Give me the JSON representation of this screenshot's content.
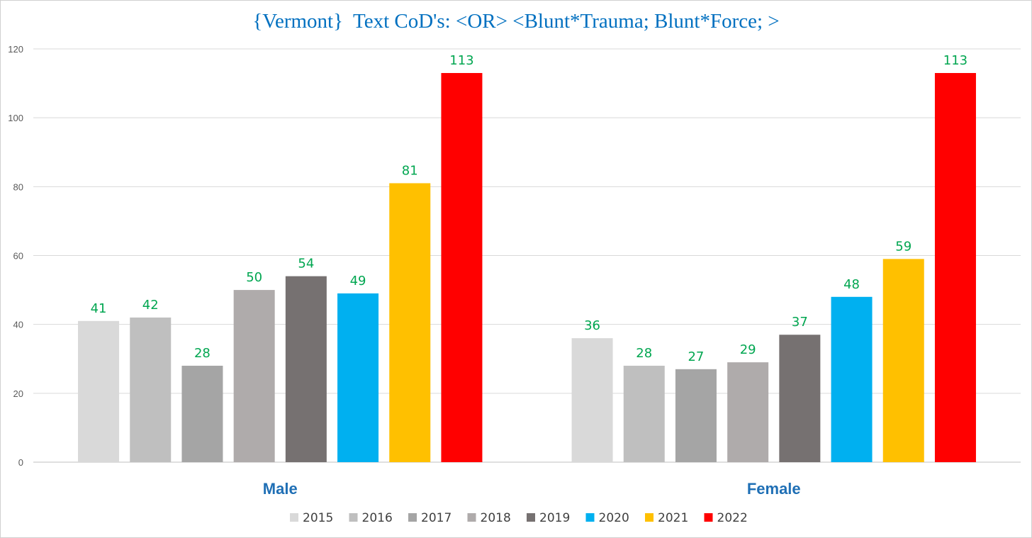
{
  "chart_data": {
    "type": "bar",
    "title": "{Vermont}  Text CoD's: <OR> <Blunt*Trauma; Blunt*Force; >",
    "xlabel": "",
    "ylabel": "",
    "ylim": [
      0,
      120
    ],
    "yticks": [
      0,
      20,
      40,
      60,
      80,
      100,
      120
    ],
    "grid": true,
    "legend_position": "bottom",
    "categories": [
      "Male",
      "Female"
    ],
    "series": [
      {
        "name": "2015",
        "color": "#d9d9d9",
        "values": [
          41,
          36
        ]
      },
      {
        "name": "2016",
        "color": "#bfbfbf",
        "values": [
          42,
          28
        ]
      },
      {
        "name": "2017",
        "color": "#a5a5a5",
        "values": [
          28,
          27
        ]
      },
      {
        "name": "2018",
        "color": "#afabab",
        "values": [
          50,
          29
        ]
      },
      {
        "name": "2019",
        "color": "#767171",
        "values": [
          54,
          37
        ]
      },
      {
        "name": "2020",
        "color": "#00b0f0",
        "values": [
          49,
          48
        ]
      },
      {
        "name": "2021",
        "color": "#ffc000",
        "values": [
          81,
          59
        ]
      },
      {
        "name": "2022",
        "color": "#ff0000",
        "values": [
          113,
          113
        ]
      }
    ]
  }
}
